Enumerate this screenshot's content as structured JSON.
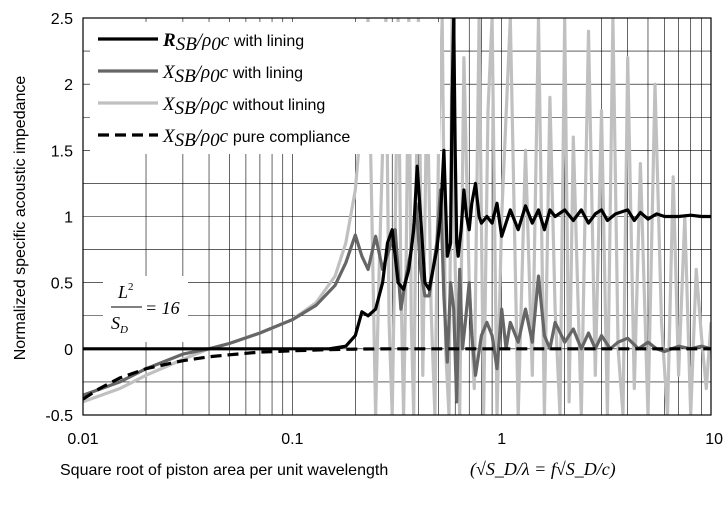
{
  "chart_data": {
    "type": "line",
    "title": "",
    "xlabel": "Square root of piston area per unit wavelength",
    "xlabel_formula": "(√S_D/λ = f√S_D/c)",
    "ylabel": "Normalized specific acoustic impedance",
    "x_scale": "log",
    "xlim": [
      0.01,
      10
    ],
    "ylim": [
      -0.5,
      2.5
    ],
    "x_ticks": [
      0.01,
      0.1,
      1,
      10
    ],
    "x_tick_labels": [
      "0.01",
      "0.1",
      "1",
      "10"
    ],
    "y_ticks": [
      -0.5,
      0,
      0.5,
      1,
      1.5,
      2,
      2.5
    ],
    "y_tick_labels": [
      "-0.5",
      "0",
      "0.5",
      "1",
      "1.5",
      "2",
      "2.5"
    ],
    "grid": true,
    "legend_position": "top-left",
    "annotation": {
      "lhs_top": "L",
      "lhs_sup": "2",
      "lhs_bottom": "S",
      "lhs_sub": "D",
      "rhs": "= 16"
    },
    "series": [
      {
        "name": "R_SB/ρ0c with lining",
        "legend_symbol": "R",
        "legend_sub": "SB",
        "legend_text": "with lining",
        "color": "#000000",
        "style": "solid",
        "x": [
          0.01,
          0.05,
          0.1,
          0.15,
          0.18,
          0.2,
          0.215,
          0.23,
          0.25,
          0.27,
          0.285,
          0.3,
          0.32,
          0.34,
          0.36,
          0.38,
          0.395,
          0.41,
          0.43,
          0.45,
          0.47,
          0.49,
          0.51,
          0.53,
          0.55,
          0.57,
          0.58,
          0.59,
          0.6,
          0.61,
          0.62,
          0.64,
          0.66,
          0.68,
          0.7,
          0.72,
          0.75,
          0.78,
          0.8,
          0.85,
          0.9,
          0.95,
          1.0,
          1.1,
          1.2,
          1.3,
          1.4,
          1.5,
          1.6,
          1.7,
          1.8,
          2.0,
          2.2,
          2.4,
          2.6,
          2.8,
          3.0,
          3.2,
          3.5,
          4.0,
          4.3,
          4.6,
          5.0,
          5.5,
          6,
          7,
          8,
          9,
          10
        ],
        "values": [
          0,
          0,
          0,
          0,
          0.02,
          0.1,
          0.28,
          0.25,
          0.3,
          0.5,
          0.8,
          0.9,
          0.5,
          0.45,
          0.6,
          0.9,
          1.38,
          1.0,
          0.5,
          0.45,
          0.6,
          0.75,
          1.0,
          1.5,
          0.7,
          0.8,
          1.9,
          2.5,
          1.5,
          0.8,
          0.7,
          0.9,
          1.2,
          1.0,
          0.9,
          1.1,
          1.25,
          1.0,
          0.95,
          1.0,
          0.95,
          1.1,
          0.85,
          1.05,
          0.9,
          1.08,
          0.95,
          1.05,
          0.9,
          1.05,
          1.0,
          1.05,
          0.97,
          1.05,
          0.95,
          1.02,
          1.05,
          0.97,
          1.02,
          1.05,
          0.97,
          1.03,
          0.98,
          1.02,
          1.0,
          1.0,
          1.01,
          1.0,
          1.0
        ]
      },
      {
        "name": "X_SB/ρ0c with lining",
        "legend_symbol": "X",
        "legend_sub": "SB",
        "legend_text": "with lining",
        "color": "#666666",
        "style": "solid",
        "x": [
          0.01,
          0.015,
          0.02,
          0.03,
          0.04,
          0.05,
          0.07,
          0.1,
          0.13,
          0.16,
          0.18,
          0.2,
          0.215,
          0.23,
          0.25,
          0.27,
          0.29,
          0.31,
          0.33,
          0.35,
          0.37,
          0.39,
          0.41,
          0.43,
          0.45,
          0.47,
          0.49,
          0.51,
          0.53,
          0.55,
          0.57,
          0.59,
          0.61,
          0.63,
          0.65,
          0.67,
          0.7,
          0.72,
          0.75,
          0.8,
          0.85,
          0.9,
          0.95,
          1.0,
          1.05,
          1.1,
          1.2,
          1.3,
          1.4,
          1.5,
          1.6,
          1.7,
          1.8,
          2.0,
          2.2,
          2.4,
          2.6,
          2.8,
          3.0,
          3.3,
          3.6,
          4.0,
          4.5,
          5,
          5.5,
          6,
          7,
          8,
          9,
          10
        ],
        "values": [
          -0.35,
          -0.25,
          -0.15,
          -0.04,
          0.0,
          0.04,
          0.12,
          0.22,
          0.33,
          0.48,
          0.65,
          0.86,
          0.7,
          0.6,
          0.85,
          0.6,
          0.75,
          0.9,
          0.3,
          0.55,
          0.75,
          1.1,
          0.6,
          0.4,
          0.4,
          0.6,
          0.8,
          1.2,
          0.4,
          -0.1,
          0.5,
          0.3,
          -0.4,
          0.6,
          0.0,
          0.2,
          0.5,
          0.1,
          -0.2,
          0.1,
          0.2,
          0.1,
          -0.15,
          0.3,
          0.0,
          0.2,
          0.05,
          0.3,
          0.05,
          0.55,
          0.1,
          0.0,
          0.2,
          0.05,
          0.15,
          0.0,
          0.12,
          0.0,
          0.1,
          0.0,
          0.05,
          0.08,
          0.0,
          0.05,
          0.0,
          -0.02,
          0.02,
          0.0,
          0.02,
          0.0
        ]
      },
      {
        "name": "X_SB/ρ0c without lining",
        "legend_symbol": "X",
        "legend_sub": "SB",
        "legend_text": "without lining",
        "color": "#c0c0c0",
        "style": "solid",
        "x": [
          0.01,
          0.015,
          0.02,
          0.03,
          0.04,
          0.05,
          0.07,
          0.1,
          0.13,
          0.16,
          0.18,
          0.2,
          0.21,
          0.22,
          0.23,
          0.24,
          0.25,
          0.26,
          0.27,
          0.28,
          0.29,
          0.3,
          0.31,
          0.32,
          0.33,
          0.34,
          0.35,
          0.36,
          0.37,
          0.38,
          0.39,
          0.4,
          0.42,
          0.44,
          0.46,
          0.48,
          0.5,
          0.52,
          0.54,
          0.56,
          0.58,
          0.6,
          0.63,
          0.66,
          0.7,
          0.74,
          0.78,
          0.82,
          0.86,
          0.9,
          0.95,
          1.0,
          1.1,
          1.2,
          1.3,
          1.4,
          1.5,
          1.6,
          1.7,
          1.8,
          1.9,
          2.0,
          2.1,
          2.2,
          2.4,
          2.6,
          2.8,
          3.0,
          3.2,
          3.4,
          3.6,
          3.8,
          4.0,
          4.3,
          4.6,
          5.0,
          5.4,
          5.8,
          6.2,
          6.6,
          7.0,
          7.5,
          8.0,
          8.5,
          9.0,
          9.5,
          10
        ],
        "values": [
          -0.4,
          -0.3,
          -0.2,
          -0.08,
          0.0,
          0.04,
          0.12,
          0.22,
          0.35,
          0.55,
          0.8,
          1.2,
          1.6,
          2.2,
          2.5,
          1.0,
          -0.5,
          0.6,
          1.5,
          2.5,
          0.2,
          -0.5,
          0.9,
          2.5,
          0.5,
          -0.5,
          0.7,
          2.5,
          0.2,
          -0.5,
          1.2,
          2.5,
          -0.2,
          2.1,
          0.3,
          -0.5,
          1.6,
          2.5,
          0.0,
          -0.5,
          2.5,
          0.6,
          -0.5,
          2.2,
          0.5,
          -0.3,
          2.5,
          -0.5,
          1.8,
          2.5,
          -0.5,
          1.0,
          2.5,
          -0.5,
          1.5,
          -0.2,
          2.5,
          -0.5,
          1.9,
          0.3,
          -0.5,
          2.5,
          -0.4,
          1.6,
          -0.5,
          2.4,
          -0.2,
          1.8,
          -0.5,
          2.5,
          0.0,
          -0.5,
          2.2,
          -0.3,
          1.4,
          -0.5,
          2.0,
          0.2,
          -0.5,
          1.3,
          -0.2,
          1.0,
          -0.5,
          0.6,
          0.1,
          -0.3,
          0.2
        ]
      },
      {
        "name": "X_SB/ρ0c pure compliance",
        "legend_symbol": "X",
        "legend_sub": "SB",
        "legend_text": "pure compliance",
        "color": "#000000",
        "style": "dashed",
        "x": [
          0.01,
          0.012,
          0.015,
          0.02,
          0.03,
          0.04,
          0.05,
          0.07,
          0.1,
          0.15,
          0.2,
          0.3,
          0.5,
          1,
          10
        ],
        "values": [
          -0.38,
          -0.3,
          -0.22,
          -0.15,
          -0.09,
          -0.06,
          -0.045,
          -0.025,
          -0.015,
          -0.006,
          -0.002,
          0,
          0,
          0,
          0
        ]
      }
    ]
  }
}
